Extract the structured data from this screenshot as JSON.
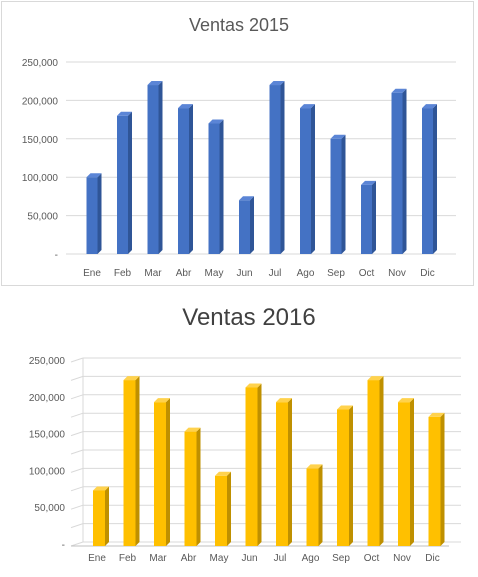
{
  "chart_data": [
    {
      "type": "bar",
      "title": "Ventas 2015",
      "xlabel": "",
      "ylabel": "",
      "categories": [
        "Ene",
        "Feb",
        "Mar",
        "Abr",
        "May",
        "Jun",
        "Jul",
        "Ago",
        "Sep",
        "Oct",
        "Nov",
        "Dic"
      ],
      "values": [
        100000,
        180000,
        220000,
        190000,
        170000,
        70000,
        220000,
        190000,
        150000,
        90000,
        210000,
        190000
      ],
      "ylim": [
        0,
        250000
      ],
      "yticks": [
        "-",
        "50,000",
        "100,000",
        "150,000",
        "200,000",
        "250,000"
      ],
      "grid": true,
      "bar_color": "#4472c4",
      "bar_side_color": "#2f5597",
      "bar_top_color": "#5b85d6"
    },
    {
      "type": "bar",
      "title": "Ventas 2016",
      "xlabel": "",
      "ylabel": "",
      "categories": [
        "Ene",
        "Feb",
        "Mar",
        "Abr",
        "May",
        "Jun",
        "Jul",
        "Ago",
        "Sep",
        "Oct",
        "Nov",
        "Dic"
      ],
      "values": [
        70000,
        220000,
        190000,
        150000,
        90000,
        210000,
        190000,
        100000,
        180000,
        220000,
        190000,
        170000
      ],
      "ylim": [
        0,
        250000
      ],
      "yticks": [
        "-",
        "50,000",
        "100,000",
        "150,000",
        "200,000",
        "250,000"
      ],
      "grid": true,
      "bar_color": "#ffc000",
      "bar_side_color": "#bf9000",
      "bar_top_color": "#ffd24d"
    }
  ]
}
